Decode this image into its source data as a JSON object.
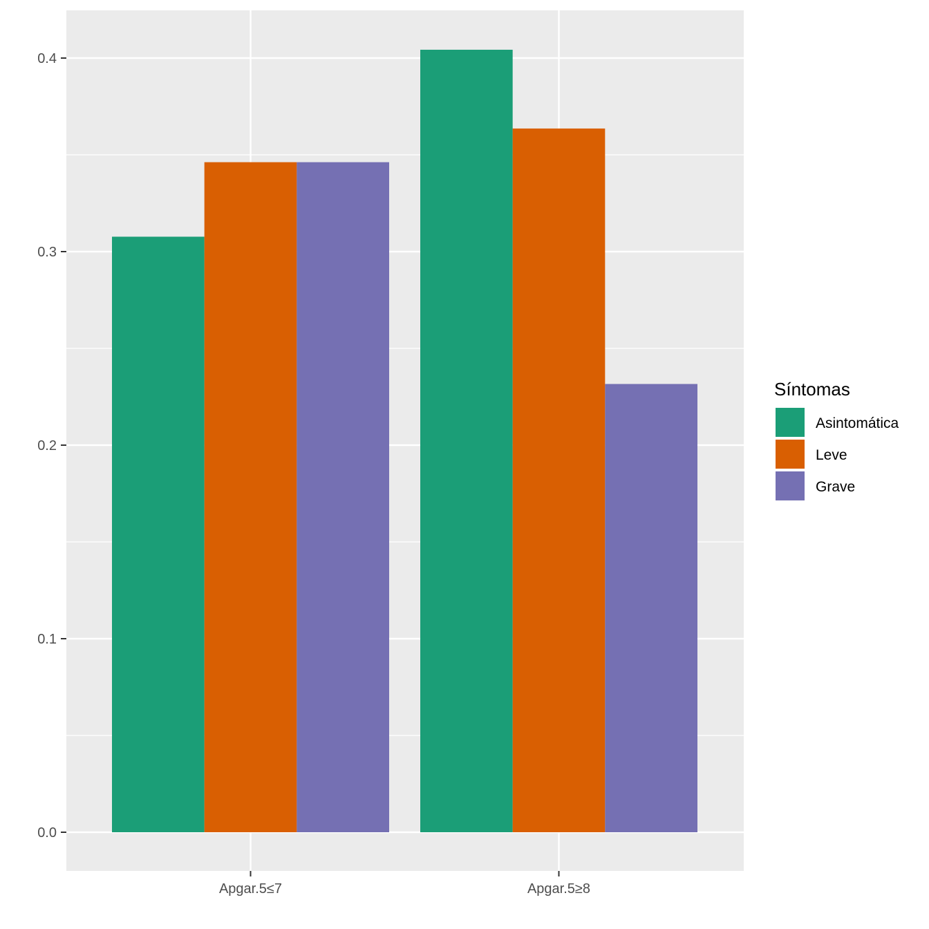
{
  "chart_data": {
    "type": "bar",
    "categories": [
      "Apgar.5≤7",
      "Apgar.5≥8"
    ],
    "series": [
      {
        "name": "Asintomática",
        "color": "#1B9E77",
        "values": [
          0.3077,
          0.4043
        ]
      },
      {
        "name": "Leve",
        "color": "#D95F02",
        "values": [
          0.3462,
          0.3636
        ]
      },
      {
        "name": "Grave",
        "color": "#7570B3",
        "values": [
          0.3462,
          0.2316
        ]
      }
    ],
    "title": "",
    "xlabel": "",
    "ylabel": "",
    "ylim": [
      -0.02,
      0.4245
    ],
    "yticks": [
      "0.0",
      "0.1",
      "0.2",
      "0.3",
      "0.4"
    ],
    "grid": true,
    "legend": {
      "title": "Síntomas",
      "position": "right"
    },
    "colors": {
      "panel": "#EBEBEB",
      "grid": "#FFFFFF",
      "tick_text": "#4D4D4D"
    }
  }
}
